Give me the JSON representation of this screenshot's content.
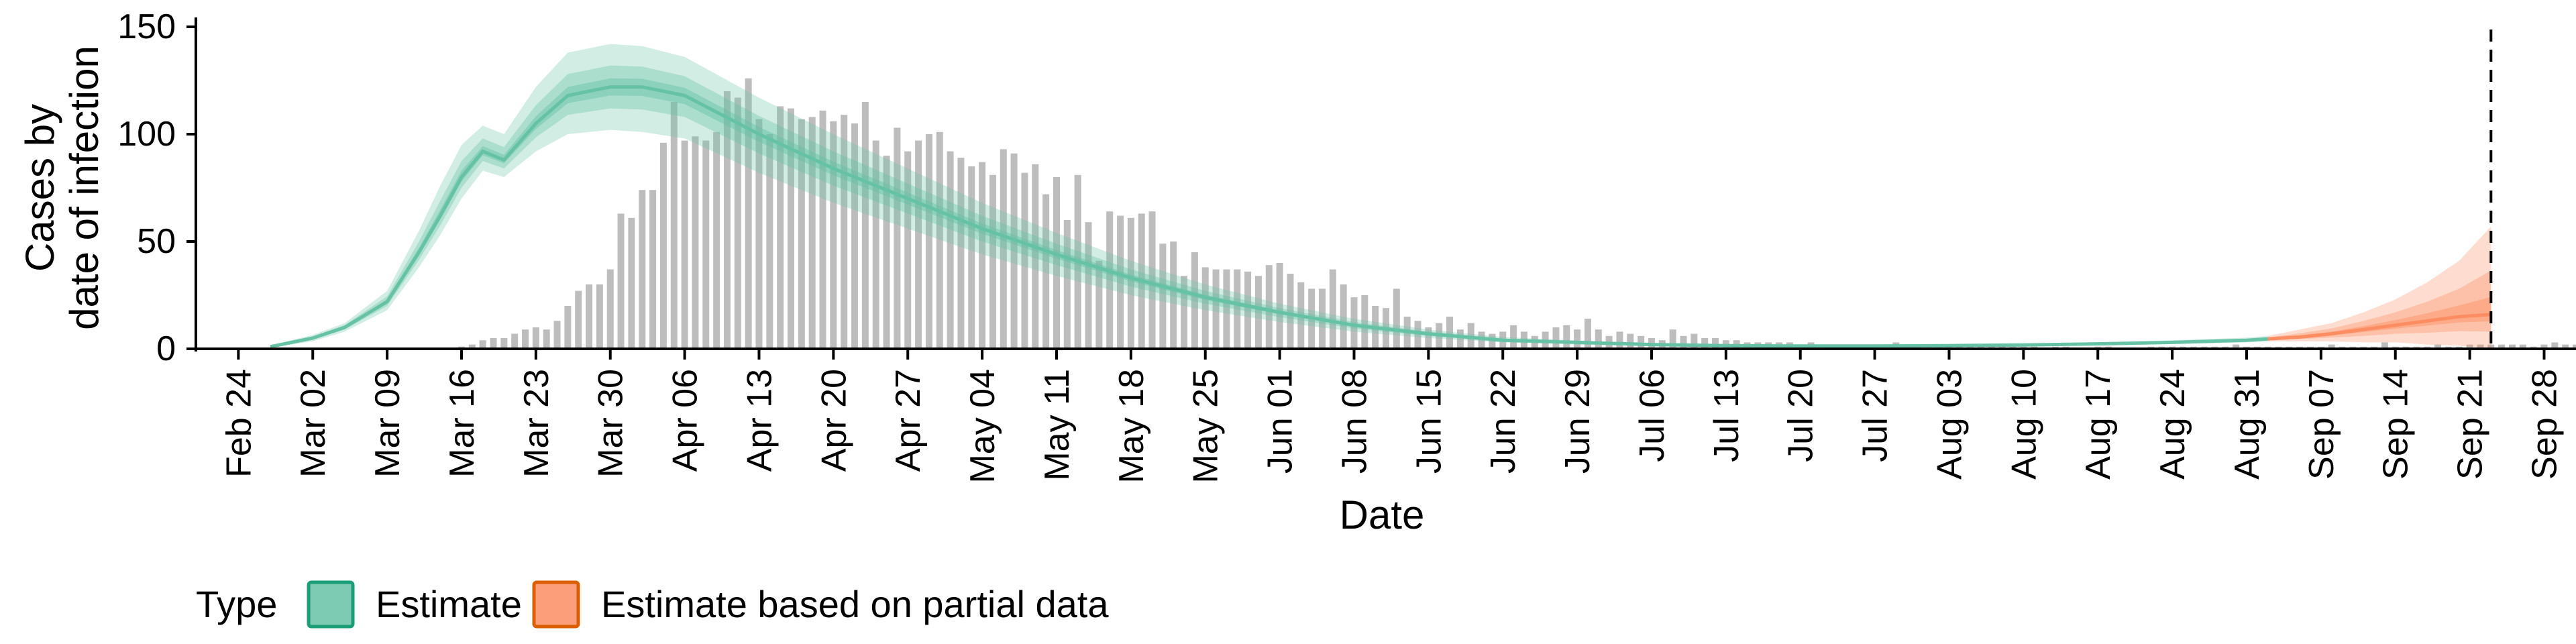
{
  "chart_data": {
    "type": "bar",
    "xlabel": "Date",
    "ylabel_lines": [
      "Cases by",
      "date of infection"
    ],
    "ylim": [
      0,
      150
    ],
    "yticks": [
      0,
      50,
      100,
      150
    ],
    "x_range": [
      "2020-02-20",
      "2020-10-01"
    ],
    "xtick_dates": [
      "2020-02-24",
      "2020-03-02",
      "2020-03-09",
      "2020-03-16",
      "2020-03-23",
      "2020-03-30",
      "2020-04-06",
      "2020-04-13",
      "2020-04-20",
      "2020-04-27",
      "2020-05-04",
      "2020-05-11",
      "2020-05-18",
      "2020-05-25",
      "2020-06-01",
      "2020-06-08",
      "2020-06-15",
      "2020-06-22",
      "2020-06-29",
      "2020-07-06",
      "2020-07-13",
      "2020-07-20",
      "2020-07-27",
      "2020-08-03",
      "2020-08-10",
      "2020-08-17",
      "2020-08-24",
      "2020-08-31",
      "2020-09-07",
      "2020-09-14",
      "2020-09-21",
      "2020-09-28"
    ],
    "xtick_labels": [
      "Feb 24",
      "Mar 02",
      "Mar 09",
      "Mar 16",
      "Mar 23",
      "Mar 30",
      "Apr 06",
      "Apr 13",
      "Apr 20",
      "Apr 27",
      "May 04",
      "May 11",
      "May 18",
      "May 25",
      "Jun 01",
      "Jun 08",
      "Jun 15",
      "Jun 22",
      "Jun 29",
      "Jul 06",
      "Jul 13",
      "Jul 20",
      "Jul 27",
      "Aug 03",
      "Aug 10",
      "Aug 17",
      "Aug 24",
      "Aug 31",
      "Sep 07",
      "Sep 14",
      "Sep 21",
      "Sep 28"
    ],
    "vline_date": "2020-09-23",
    "bars": {
      "start_date": "2020-03-16",
      "values": [
        1,
        2,
        4,
        5,
        5,
        7,
        9,
        10,
        9,
        13,
        20,
        27,
        30,
        30,
        37,
        63,
        61,
        74,
        74,
        96,
        115,
        97,
        99,
        97,
        101,
        120,
        117,
        126,
        107,
        100,
        113,
        112,
        107,
        108,
        111,
        106,
        109,
        105,
        115,
        97,
        90,
        103,
        92,
        97,
        100,
        101,
        92,
        89,
        85,
        87,
        81,
        93,
        91,
        82,
        86,
        72,
        80,
        60,
        81,
        59,
        41,
        64,
        62,
        61,
        63,
        64,
        49,
        50,
        34,
        45,
        38,
        37,
        37,
        37,
        36,
        34,
        39,
        40,
        35,
        31,
        28,
        28,
        37,
        30,
        24,
        25,
        20,
        19,
        28,
        15,
        13,
        10,
        12,
        15,
        9,
        12,
        8,
        7,
        8,
        11,
        8,
        6,
        8,
        10,
        11,
        9,
        14,
        9,
        6,
        8,
        7,
        6,
        5,
        4,
        9,
        6,
        7,
        5,
        5,
        4,
        4,
        3,
        3,
        3,
        3,
        3,
        2,
        3,
        2,
        2,
        1,
        2,
        2,
        1,
        2,
        3,
        2,
        1,
        1,
        2,
        1,
        2,
        1,
        1,
        2,
        2,
        1,
        1,
        1,
        0,
        1,
        1,
        0,
        0,
        1,
        1,
        0,
        0,
        0,
        1,
        1,
        1,
        1,
        1,
        1,
        1,
        1,
        2,
        1,
        1,
        1,
        1,
        1,
        1,
        1,
        1,
        2,
        1,
        1,
        1,
        1,
        3,
        1,
        1,
        1,
        1,
        2,
        1,
        1,
        2,
        2,
        2,
        2,
        2,
        2,
        1,
        2,
        3,
        2,
        2,
        2,
        3,
        3,
        3,
        2,
        5,
        3,
        3,
        4,
        4,
        4,
        3,
        4,
        5,
        6,
        7,
        6,
        5,
        4,
        7
      ],
      "color": "#bdbdbd"
    },
    "series": [
      {
        "name": "Estimate",
        "color": "#66c2a5",
        "dates": [
          "2020-02-27",
          "2020-03-02",
          "2020-03-05",
          "2020-03-09",
          "2020-03-12",
          "2020-03-14",
          "2020-03-16",
          "2020-03-18",
          "2020-03-20",
          "2020-03-23",
          "2020-03-26",
          "2020-03-30",
          "2020-04-02",
          "2020-04-06",
          "2020-04-13",
          "2020-04-20",
          "2020-04-27",
          "2020-05-04",
          "2020-05-11",
          "2020-05-18",
          "2020-05-25",
          "2020-06-01",
          "2020-06-08",
          "2020-06-15",
          "2020-06-22",
          "2020-06-29",
          "2020-07-06",
          "2020-07-13",
          "2020-07-20",
          "2020-07-27",
          "2020-08-03",
          "2020-08-10",
          "2020-08-17",
          "2020-08-24",
          "2020-08-31",
          "2020-09-02"
        ],
        "median": [
          1,
          5,
          10,
          22,
          45,
          62,
          80,
          92,
          88,
          105,
          118,
          122,
          122,
          118,
          100,
          84,
          70,
          56,
          44,
          33,
          24,
          17,
          11,
          7,
          4,
          3,
          2,
          1.5,
          1.3,
          1.3,
          1.5,
          1.8,
          2.3,
          3,
          4,
          4.6
        ],
        "lower90": [
          0.5,
          3.5,
          8,
          18,
          38,
          53,
          70,
          83,
          80,
          92,
          100,
          102,
          101,
          98,
          82,
          68,
          56,
          44,
          34,
          25,
          18,
          12.5,
          8,
          5,
          3,
          2,
          1.3,
          1,
          0.8,
          0.8,
          1,
          1.3,
          1.6,
          2.2,
          3,
          3.5
        ],
        "upper90": [
          1.5,
          6.5,
          12,
          27,
          55,
          76,
          95,
          104,
          100,
          122,
          138,
          142,
          141,
          136,
          117,
          100,
          84,
          68,
          54,
          41,
          30,
          21,
          14,
          9,
          5.5,
          3.8,
          2.7,
          2,
          1.8,
          1.8,
          2,
          2.4,
          3,
          4,
          5.2,
          6
        ]
      },
      {
        "name": "Estimate based on partial data",
        "color": "#fc8d62",
        "dates": [
          "2020-09-02",
          "2020-09-05",
          "2020-09-08",
          "2020-09-11",
          "2020-09-14",
          "2020-09-17",
          "2020-09-20",
          "2020-09-23"
        ],
        "median": [
          4.6,
          5.5,
          7,
          9,
          11,
          13,
          15,
          16
        ],
        "lower90": [
          3.5,
          3.5,
          3.5,
          3,
          3,
          2,
          1.5,
          0
        ],
        "upper90": [
          6,
          9,
          12,
          17,
          23,
          31,
          41,
          57
        ]
      }
    ],
    "legend": {
      "title": "Type",
      "items": [
        "Estimate",
        "Estimate based on partial data"
      ],
      "position": "bottom"
    }
  }
}
